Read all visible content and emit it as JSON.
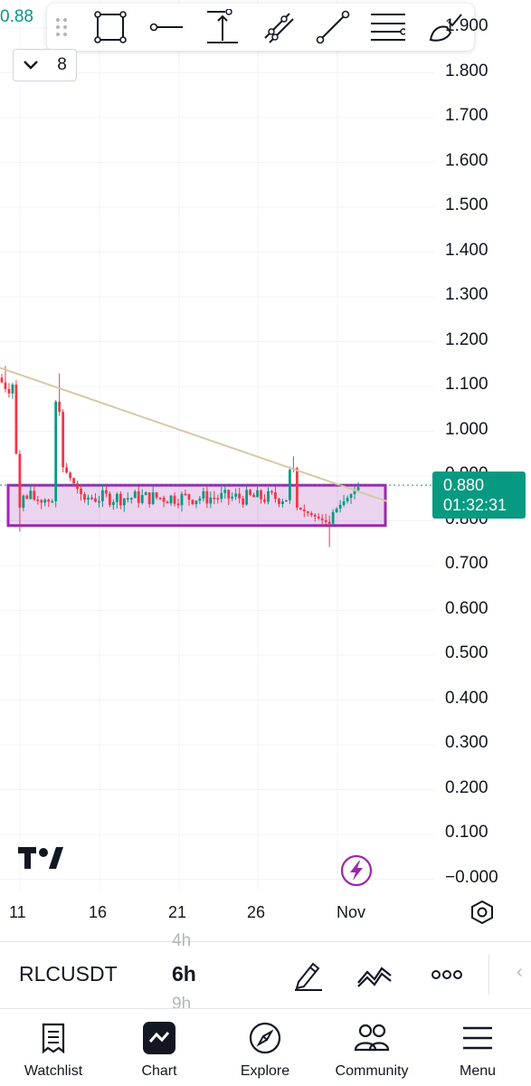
{
  "header": {
    "top_price": "0.88",
    "interval_chip": {
      "chevron": "chevron-down-icon",
      "count": "8"
    }
  },
  "drawing_toolbar": {
    "tools": [
      "drag-handle-icon",
      "rectangle-icon",
      "horizontal-line-icon",
      "vertical-range-icon",
      "trend-channel-icon",
      "trend-line-icon",
      "fib-lines-icon",
      "brush-icon"
    ]
  },
  "price_axis": {
    "labels": [
      "1.900",
      "1.800",
      "1.700",
      "1.600",
      "1.500",
      "1.400",
      "1.300",
      "1.200",
      "1.100",
      "1.000",
      "0.900",
      "0.800",
      "0.700",
      "0.600",
      "0.500",
      "0.400",
      "0.300",
      "0.200",
      "0.100",
      "−0.000"
    ]
  },
  "last_price": {
    "price": "0.880",
    "countdown": "01:32:31"
  },
  "time_axis": {
    "labels": [
      "11",
      "16",
      "21",
      "26",
      "Nov"
    ]
  },
  "chart_data": {
    "type": "candlestick",
    "symbol": "RLCUSDT",
    "interval": "6h",
    "ylim": [
      0.0,
      1.9
    ],
    "x_ticks": [
      "11",
      "16",
      "21",
      "26",
      "Nov"
    ],
    "last_price": 0.88,
    "candles_approx": {
      "start_high": 1.15,
      "spike_low": 0.74,
      "second_spike_high": 1.11,
      "range_low": 0.79,
      "range_high": 0.88,
      "recent_low": 0.77,
      "close": 0.88
    },
    "drawings": {
      "trend_line": {
        "from_price": 1.15,
        "to_price": 0.86,
        "color": "#d7c8a6"
      },
      "range_rectangle": {
        "top_price": 0.88,
        "bottom_price": 0.79,
        "color": "#9c27b0"
      }
    },
    "colors": {
      "up": "#089981",
      "down": "#f23645"
    }
  },
  "symbol_bar": {
    "symbol": "RLCUSDT",
    "interval_prev": "4h",
    "interval_current": "6h",
    "interval_next": "9h",
    "icons": [
      "pencil-icon",
      "indicator-icon",
      "more-icon"
    ]
  },
  "bottom_nav": [
    {
      "label": "Watchlist",
      "icon": "watchlist-icon"
    },
    {
      "label": "Chart",
      "icon": "chart-icon"
    },
    {
      "label": "Explore",
      "icon": "compass-icon"
    },
    {
      "label": "Community",
      "icon": "community-icon"
    },
    {
      "label": "Menu",
      "icon": "menu-icon"
    }
  ]
}
